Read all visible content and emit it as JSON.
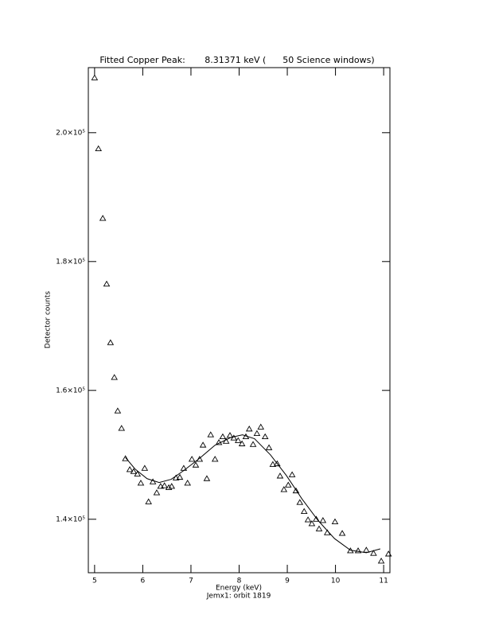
{
  "chart_data": {
    "type": "scatter",
    "title": "Fitted Copper Peak:       8.31371 keV (      50 Science windows)",
    "x_label": "Energy (keV)",
    "x_sublabel": "Jemx1: orbit 1819",
    "y_label": "Detector counts",
    "xlim": [
      4.87,
      11.13
    ],
    "ylim": [
      131700,
      210100
    ],
    "xticks": [
      5,
      6,
      7,
      8,
      9,
      10,
      11
    ],
    "yticks": [
      {
        "value": 140000,
        "label": "1.4×10⁵"
      },
      {
        "value": 160000,
        "label": "1.6×10⁵"
      },
      {
        "value": 180000,
        "label": "1.8×10⁵"
      },
      {
        "value": 200000,
        "label": "2.0×10⁵"
      }
    ],
    "series": [
      {
        "marker": "triangle",
        "color": "#000000",
        "x": [
          5.0,
          5.08,
          5.17,
          5.25,
          5.33,
          5.41,
          5.48,
          5.56,
          5.64,
          5.73,
          5.81,
          5.89,
          5.96,
          6.04,
          6.12,
          6.21,
          6.29,
          6.37,
          6.45,
          6.54,
          6.6,
          6.69,
          6.77,
          6.85,
          6.93,
          7.02,
          7.1,
          7.18,
          7.25,
          7.33,
          7.41,
          7.5,
          7.58,
          7.66,
          7.73,
          7.81,
          7.89,
          7.98,
          8.06,
          8.14,
          8.21,
          8.29,
          8.37,
          8.45,
          8.54,
          8.62,
          8.7,
          8.79,
          8.85,
          8.93,
          9.02,
          9.1,
          9.18,
          9.26,
          9.35,
          9.43,
          9.51,
          9.6,
          9.66,
          9.74,
          9.83,
          9.99,
          10.14,
          10.31,
          10.47,
          10.64,
          10.79,
          10.95,
          11.1
        ],
        "values": [
          208500,
          197500,
          186700,
          176500,
          167400,
          162000,
          156800,
          154100,
          149400,
          147700,
          147400,
          147000,
          145600,
          147900,
          142700,
          145800,
          144100,
          145100,
          145200,
          144900,
          145100,
          146400,
          146500,
          147900,
          145600,
          149300,
          148400,
          149300,
          151500,
          146300,
          153100,
          149300,
          151900,
          152800,
          152100,
          153000,
          152600,
          152200,
          151700,
          152800,
          154000,
          151600,
          153300,
          154300,
          152800,
          151100,
          148500,
          148600,
          146700,
          144600,
          145300,
          146900,
          144400,
          142600,
          141200,
          139900,
          139300,
          140000,
          138500,
          139800,
          137900,
          139600,
          137800,
          135100,
          135100,
          135200,
          134700,
          133500,
          134600
        ]
      },
      {
        "marker": "line",
        "color": "#000000",
        "x": [
          5.64,
          5.84,
          6.09,
          6.34,
          6.59,
          6.84,
          7.17,
          7.5,
          7.83,
          8.07,
          8.32,
          8.65,
          8.98,
          9.31,
          9.64,
          9.98,
          10.31,
          10.64,
          10.93
        ],
        "values": [
          149600,
          147800,
          146300,
          145700,
          146200,
          147500,
          149400,
          151500,
          152700,
          153100,
          152500,
          150000,
          146800,
          143100,
          139800,
          137000,
          135200,
          134800,
          135400
        ]
      }
    ]
  }
}
